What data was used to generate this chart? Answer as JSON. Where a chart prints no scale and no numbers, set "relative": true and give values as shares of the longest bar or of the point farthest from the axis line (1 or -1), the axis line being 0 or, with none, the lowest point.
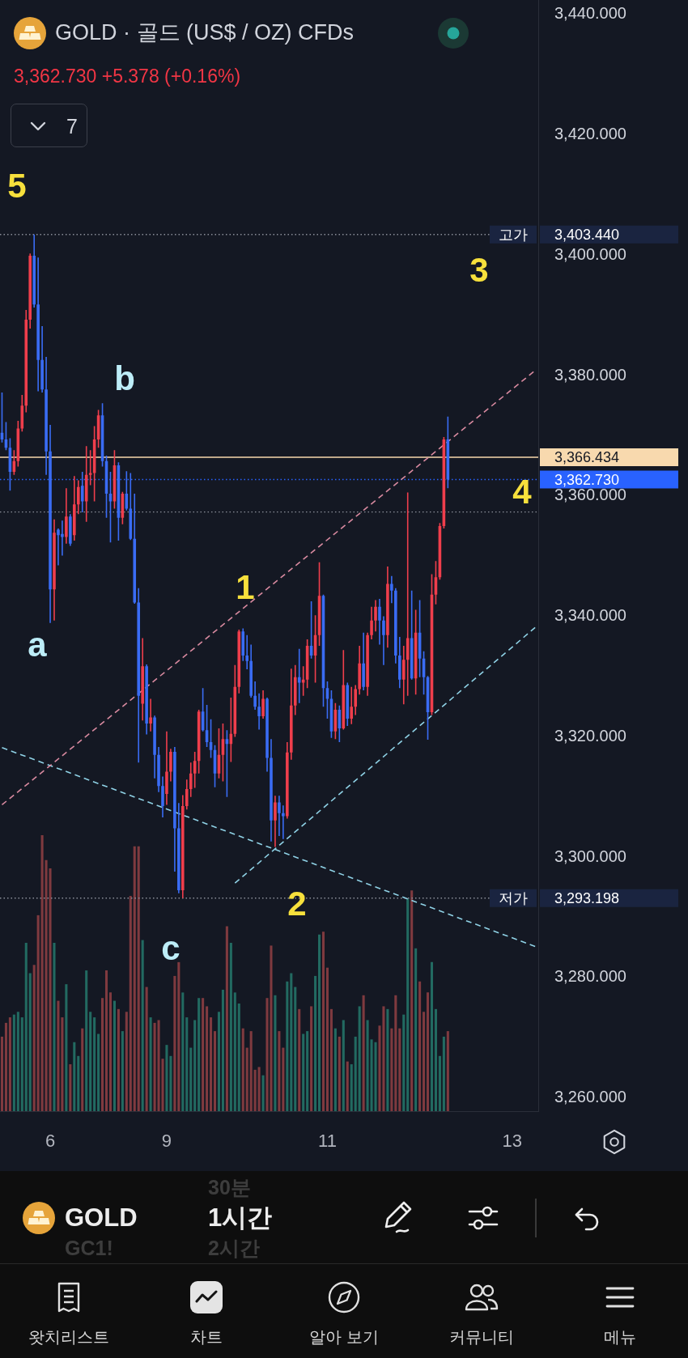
{
  "chart_data": [
    {
      "type": "candlestick",
      "title": "GOLD · 골드 (US$ / OZ) CFDs",
      "subtitle": "3,362.730 +5.378 (+0.16%)",
      "categories": [
        null,
        null,
        null,
        null,
        null,
        null,
        null,
        null,
        null,
        null,
        null,
        null,
        "6",
        null,
        null,
        null,
        null,
        null,
        null,
        null,
        null,
        null,
        null,
        null,
        null,
        null,
        null,
        null,
        null,
        null,
        null,
        null,
        null,
        null,
        null,
        null,
        null,
        null,
        null,
        null,
        null,
        "9",
        null,
        null,
        null,
        null,
        null,
        null,
        null,
        null,
        null,
        null,
        null,
        null,
        null,
        null,
        null,
        null,
        null,
        null,
        null,
        null,
        null,
        null,
        null,
        null,
        null,
        null,
        null,
        null,
        null,
        null,
        null,
        null,
        null,
        null,
        null,
        null,
        null,
        null,
        null,
        "11",
        null,
        null,
        null,
        null,
        null,
        null,
        null,
        null,
        null,
        null,
        null,
        null,
        null,
        null,
        null,
        null,
        null,
        null,
        null,
        null,
        null,
        null,
        null,
        null,
        null,
        null,
        null,
        null,
        null,
        null,
        null,
        null,
        null,
        null,
        null,
        null,
        null,
        null,
        null,
        null,
        null,
        null,
        null,
        null,
        null,
        "13",
        null,
        null,
        null,
        null,
        null,
        null
      ],
      "ohlc": [
        [
          3370.5,
          3377.2,
          3368.9,
          3369.4
        ],
        [
          3369.4,
          3372.3,
          3367.6,
          3368.0
        ],
        [
          3368.0,
          3369.6,
          3360.9,
          3364.0
        ],
        [
          3364.0,
          3367.6,
          3363.5,
          3365.8
        ],
        [
          3365.8,
          3372.5,
          3364.9,
          3371.2
        ],
        [
          3371.2,
          3376.8,
          3370.7,
          3375.0
        ],
        [
          3375.0,
          3390.9,
          3373.9,
          3389.3
        ],
        [
          3389.3,
          3400.3,
          3387.8,
          3399.9
        ],
        [
          3399.9,
          3403.44,
          3391.3,
          3391.8
        ],
        [
          3391.8,
          3399.6,
          3377.4,
          3382.6
        ],
        [
          3382.6,
          3388.2,
          3377.2,
          3377.7
        ],
        [
          3377.7,
          3383.1,
          3363.5,
          3367.4
        ],
        [
          3367.4,
          3371.8,
          3338.9,
          3344.5
        ],
        [
          3344.5,
          3356.1,
          3339.3,
          3353.9
        ],
        [
          3354.4,
          3354.6,
          3348.5,
          3353.5
        ],
        [
          3353.7,
          3355.9,
          3350.1,
          3353.2
        ],
        [
          3353.2,
          3361.3,
          3352.1,
          3356.6
        ],
        [
          3356.6,
          3357.0,
          3351.7,
          3352.1
        ],
        [
          3353.5,
          3363.3,
          3352.6,
          3358.6
        ],
        [
          3358.6,
          3362.6,
          3357.0,
          3361.5
        ],
        [
          3361.7,
          3364.0,
          3357.3,
          3359.1
        ],
        [
          3359.1,
          3368.3,
          3355.7,
          3363.5
        ],
        [
          3363.5,
          3367.6,
          3361.8,
          3363.8
        ],
        [
          3363.8,
          3371.6,
          3359.1,
          3369.4
        ],
        [
          3369.4,
          3374.3,
          3368.0,
          3373.4
        ],
        [
          3373.4,
          3375.4,
          3364.9,
          3365.8
        ],
        [
          3365.8,
          3366.7,
          3356.4,
          3360.4
        ],
        [
          3360.4,
          3364.0,
          3352.3,
          3359.1
        ],
        [
          3359.1,
          3367.6,
          3357.9,
          3365.1
        ],
        [
          3365.1,
          3365.6,
          3352.6,
          3356.4
        ],
        [
          3356.4,
          3360.7,
          3355.3,
          3360.4
        ],
        [
          3360.4,
          3364.1,
          3357.6,
          3357.9
        ],
        [
          3357.9,
          3363.8,
          3352.7,
          3352.9
        ],
        [
          3352.9,
          3360.4,
          3342.1,
          3342.3
        ],
        [
          3342.3,
          3344.7,
          3315.7,
          3326.8
        ],
        [
          3325.5,
          3336.4,
          3322.7,
          3331.7
        ],
        [
          3331.7,
          3332.0,
          3320.4,
          3322.2
        ],
        [
          3322.2,
          3326.3,
          3320.9,
          3323.2
        ],
        [
          3323.2,
          3323.5,
          3313.1,
          3317.0
        ],
        [
          3317.0,
          3318.3,
          3310.8,
          3311.8
        ],
        [
          3311.8,
          3313.4,
          3306.6,
          3308.5
        ],
        [
          3310.5,
          3320.9,
          3308.7,
          3314.2
        ],
        [
          3314.2,
          3318.0,
          3312.6,
          3317.5
        ],
        [
          3317.5,
          3318.3,
          3297.6,
          3304.8
        ],
        [
          3304.8,
          3309.0,
          3294.0,
          3294.5
        ],
        [
          3294.5,
          3310.3,
          3293.198,
          3308.5
        ],
        [
          3308.5,
          3312.9,
          3307.9,
          3311.3
        ],
        [
          3311.3,
          3315.7,
          3310.0,
          3313.9
        ],
        [
          3313.9,
          3317.5,
          3311.5,
          3316.0
        ],
        [
          3316.0,
          3324.5,
          3313.9,
          3324.2
        ],
        [
          3324.2,
          3328.1,
          3320.9,
          3321.1
        ],
        [
          3321.1,
          3325.3,
          3318.3,
          3319.1
        ],
        [
          3319.1,
          3322.9,
          3316.5,
          3317.8
        ],
        [
          3317.8,
          3318.6,
          3311.6,
          3313.9
        ],
        [
          3313.9,
          3321.4,
          3313.1,
          3317.0
        ],
        [
          3317.0,
          3322.2,
          3312.6,
          3319.6
        ],
        [
          3319.6,
          3321.1,
          3310.0,
          3318.8
        ],
        [
          3318.8,
          3326.5,
          3315.8,
          3320.5
        ],
        [
          3320.5,
          3331.9,
          3320.0,
          3328.3
        ],
        [
          3328.3,
          3337.8,
          3327.2,
          3337.5
        ],
        [
          3337.5,
          3338.0,
          3332.6,
          3333.5
        ],
        [
          3333.5,
          3336.9,
          3331.2,
          3332.6
        ],
        [
          3332.6,
          3335.3,
          3326.5,
          3326.8
        ],
        [
          3326.8,
          3329.2,
          3324.5,
          3325.0
        ],
        [
          3325.0,
          3327.2,
          3321.2,
          3323.4
        ],
        [
          3323.4,
          3327.7,
          3323.0,
          3326.3
        ],
        [
          3326.3,
          3326.5,
          3314.2,
          3316.5
        ],
        [
          3316.5,
          3319.6,
          3302.6,
          3306.1
        ],
        [
          3306.1,
          3310.2,
          3301.7,
          3309.1
        ],
        [
          3309.1,
          3310.2,
          3303.5,
          3307.3
        ],
        [
          3307.3,
          3308.6,
          3303.0,
          3306.8
        ],
        [
          3306.8,
          3319.1,
          3306.4,
          3317.4
        ],
        [
          3317.4,
          3331.3,
          3316.2,
          3325.2
        ],
        [
          3325.2,
          3331.9,
          3323.6,
          3329.9
        ],
        [
          3329.9,
          3334.6,
          3325.6,
          3329.0
        ],
        [
          3329.0,
          3331.7,
          3326.8,
          3329.5
        ],
        [
          3329.5,
          3336.2,
          3328.1,
          3335.1
        ],
        [
          3335.1,
          3342.5,
          3333.0,
          3333.5
        ],
        [
          3333.5,
          3340.2,
          3329.0,
          3336.9
        ],
        [
          3336.9,
          3349.0,
          3335.1,
          3343.4
        ],
        [
          3343.4,
          3343.6,
          3325.0,
          3328.1
        ],
        [
          3328.1,
          3329.2,
          3323.0,
          3326.3
        ],
        [
          3326.3,
          3327.7,
          3319.8,
          3320.9
        ],
        [
          3320.9,
          3325.6,
          3319.6,
          3324.5
        ],
        [
          3324.5,
          3325.2,
          3319.1,
          3321.4
        ],
        [
          3321.4,
          3334.4,
          3321.2,
          3328.6
        ],
        [
          3328.6,
          3329.0,
          3321.8,
          3323.0
        ],
        [
          3323.0,
          3328.3,
          3322.1,
          3325.0
        ],
        [
          3325.0,
          3328.6,
          3323.6,
          3327.9
        ],
        [
          3327.9,
          3335.1,
          3327.0,
          3332.2
        ],
        [
          3332.2,
          3337.3,
          3327.7,
          3328.3
        ],
        [
          3328.3,
          3337.3,
          3326.8,
          3336.9
        ],
        [
          3336.9,
          3341.6,
          3336.2,
          3339.3
        ],
        [
          3339.3,
          3342.7,
          3337.5,
          3341.6
        ],
        [
          3341.6,
          3342.9,
          3335.3,
          3339.3
        ],
        [
          3339.3,
          3340.0,
          3331.9,
          3336.9
        ],
        [
          3336.9,
          3348.3,
          3334.8,
          3345.4
        ],
        [
          3345.4,
          3346.7,
          3342.2,
          3344.3
        ],
        [
          3344.3,
          3344.7,
          3332.2,
          3333.5
        ],
        [
          3333.5,
          3336.6,
          3328.1,
          3329.5
        ],
        [
          3329.5,
          3335.1,
          3325.4,
          3332.8
        ],
        [
          3332.8,
          3360.6,
          3326.8,
          3336.4
        ],
        [
          3336.4,
          3344.3,
          3329.5,
          3329.7
        ],
        [
          3329.7,
          3341.1,
          3327.0,
          3337.3
        ],
        [
          3337.3,
          3342.7,
          3329.9,
          3333.0
        ],
        [
          3333.0,
          3334.2,
          3327.0,
          3329.9
        ],
        [
          3329.9,
          3330.1,
          3319.5,
          3324.1
        ],
        [
          3324.1,
          3347.0,
          3323.6,
          3343.6
        ],
        [
          3343.6,
          3349.2,
          3342.0,
          3346.5
        ],
        [
          3346.5,
          3355.5,
          3346.1,
          3355.0
        ],
        [
          3355.0,
          3369.8,
          3354.6,
          3369.4
        ],
        [
          3369.4,
          3373.2,
          3361.3,
          3362.73
        ],
        null,
        null,
        null,
        null,
        null,
        null,
        null,
        null,
        null,
        null,
        null,
        null,
        null,
        null,
        null,
        null,
        null,
        null,
        null,
        null,
        null,
        null
      ],
      "colors": [
        "#3a6cf4",
        "#3a6cf4",
        "#3a6cf4",
        "#ef3e4c",
        "#ef3e4c",
        "#ef3e4c",
        "#ef3e4c",
        "#ef3e4c",
        "#3a6cf4",
        "#3a6cf4",
        "#3a6cf4",
        "#3a6cf4",
        "#3a6cf4",
        "#ef3e4c",
        "#3a6cf4",
        "#3a6cf4",
        "#ef3e4c",
        "#3a6cf4",
        "#ef3e4c",
        "#ef3e4c",
        "#3a6cf4",
        "#ef3e4c",
        "#ef3e4c",
        "#ef3e4c",
        "#ef3e4c",
        "#3a6cf4",
        "#3a6cf4",
        "#3a6cf4",
        "#ef3e4c",
        "#3a6cf4",
        "#ef3e4c",
        "#3a6cf4",
        "#3a6cf4",
        "#3a6cf4",
        "#3a6cf4",
        "#ef3e4c",
        "#3a6cf4",
        "#ef3e4c",
        "#3a6cf4",
        "#3a6cf4",
        "#3a6cf4",
        "#ef3e4c",
        "#ef3e4c",
        "#3a6cf4",
        "#3a6cf4",
        "#ef3e4c",
        "#ef3e4c",
        "#ef3e4c",
        "#ef3e4c",
        "#ef3e4c",
        "#3a6cf4",
        "#3a6cf4",
        "#3a6cf4",
        "#3a6cf4",
        "#ef3e4c",
        "#ef3e4c",
        "#3a6cf4",
        "#ef3e4c",
        "#ef3e4c",
        "#ef3e4c",
        "#3a6cf4",
        "#3a6cf4",
        "#3a6cf4",
        "#3a6cf4",
        "#3a6cf4",
        "#ef3e4c",
        "#3a6cf4",
        "#3a6cf4",
        "#ef3e4c",
        "#3a6cf4",
        "#3a6cf4",
        "#ef3e4c",
        "#ef3e4c",
        "#ef3e4c",
        "#3a6cf4",
        "#ef3e4c",
        "#ef3e4c",
        "#3a6cf4",
        "#ef3e4c",
        "#ef3e4c",
        "#3a6cf4",
        "#3a6cf4",
        "#3a6cf4",
        "#ef3e4c",
        "#3a6cf4",
        "#ef3e4c",
        "#3a6cf4",
        "#ef3e4c",
        "#ef3e4c",
        "#ef3e4c",
        "#3a6cf4",
        "#ef3e4c",
        "#ef3e4c",
        "#ef3e4c",
        "#3a6cf4",
        "#3a6cf4",
        "#ef3e4c",
        "#3a6cf4",
        "#3a6cf4",
        "#3a6cf4",
        "#ef3e4c",
        "#ef3e4c",
        "#3a6cf4",
        "#ef3e4c",
        "#3a6cf4",
        "#3a6cf4",
        "#3a6cf4",
        "#ef3e4c",
        "#ef3e4c",
        "#ef3e4c",
        "#ef3e4c",
        "#3a6cf4",
        null,
        null,
        null,
        null,
        null,
        null,
        null,
        null,
        null,
        null,
        null,
        null,
        null,
        null,
        null,
        null,
        null,
        null,
        null,
        null,
        null,
        null
      ],
      "ylim": [
        3257.8,
        3442.4
      ],
      "yticks": [
        {
          "value": 3260,
          "label": "3,260.000"
        },
        {
          "value": 3280,
          "label": "3,280.000"
        },
        {
          "value": 3300,
          "label": "3,300.000"
        },
        {
          "value": 3320,
          "label": "3,320.000"
        },
        {
          "value": 3340,
          "label": "3,340.000"
        },
        {
          "value": 3360,
          "label": "3,360.000"
        },
        {
          "value": 3380,
          "label": "3,380.000"
        },
        {
          "value": 3400,
          "label": "3,400.000"
        },
        {
          "value": 3420,
          "label": "3,420.000"
        },
        {
          "value": 3440,
          "label": "3,440.000"
        }
      ],
      "series": [
        {
          "type": "line",
          "color": "#d98aa0",
          "line_style": "dashed",
          "values": [
            3308.7,
            null,
            null,
            null,
            null,
            null,
            null,
            null,
            null,
            null,
            null,
            null,
            null,
            null,
            null,
            null,
            null,
            null,
            null,
            null,
            null,
            null,
            null,
            null,
            null,
            null,
            null,
            null,
            null,
            null,
            null,
            null,
            null,
            null,
            null,
            null,
            null,
            null,
            null,
            null,
            null,
            null,
            null,
            null,
            null,
            null,
            null,
            null,
            null,
            null,
            null,
            null,
            null,
            null,
            null,
            null,
            null,
            null,
            null,
            null,
            null,
            null,
            null,
            null,
            null,
            null,
            null,
            null,
            null,
            null,
            null,
            null,
            null,
            null,
            null,
            null,
            null,
            null,
            null,
            null,
            null,
            null,
            null,
            null,
            null,
            null,
            null,
            null,
            null,
            null,
            null,
            null,
            null,
            null,
            null,
            null,
            null,
            null,
            null,
            null,
            null,
            null,
            null,
            null,
            null,
            null,
            null,
            null,
            null,
            null,
            null,
            null,
            null,
            null,
            null,
            null,
            null,
            null,
            null,
            null,
            null,
            null,
            null,
            null,
            null,
            null,
            null,
            null,
            null,
            null,
            null,
            null,
            null,
            3381.0
          ]
        },
        {
          "type": "line",
          "color": "#8fd2e6",
          "line_style": "dashed",
          "values": [
            null,
            null,
            null,
            null,
            null,
            null,
            null,
            null,
            null,
            null,
            null,
            null,
            null,
            null,
            null,
            null,
            null,
            null,
            null,
            null,
            null,
            null,
            null,
            null,
            null,
            null,
            null,
            null,
            null,
            null,
            null,
            null,
            null,
            null,
            null,
            null,
            null,
            null,
            null,
            null,
            null,
            null,
            null,
            null,
            null,
            null,
            null,
            null,
            null,
            null,
            null,
            null,
            null,
            null,
            null,
            null,
            null,
            null,
            3295.7,
            null,
            null,
            null,
            null,
            null,
            null,
            null,
            null,
            null,
            null,
            null,
            null,
            null,
            null,
            null,
            null,
            null,
            null,
            null,
            null,
            null,
            null,
            null,
            null,
            null,
            null,
            null,
            null,
            null,
            null,
            null,
            null,
            null,
            null,
            null,
            null,
            null,
            null,
            null,
            null,
            null,
            null,
            null,
            null,
            null,
            null,
            null,
            null,
            null,
            null,
            null,
            null,
            null,
            null,
            null,
            null,
            null,
            null,
            null,
            null,
            null,
            null,
            null,
            null,
            null,
            null,
            null,
            null,
            null,
            null,
            null,
            null,
            null,
            null,
            3338.3
          ]
        },
        {
          "type": "line",
          "color": "#8fd2e6",
          "line_style": "dashed",
          "values": [
            3318.2,
            null,
            null,
            null,
            null,
            null,
            null,
            null,
            null,
            null,
            null,
            null,
            null,
            null,
            null,
            null,
            null,
            null,
            null,
            null,
            null,
            null,
            null,
            null,
            null,
            null,
            null,
            null,
            null,
            null,
            null,
            null,
            null,
            null,
            null,
            null,
            null,
            null,
            null,
            null,
            null,
            null,
            null,
            null,
            null,
            null,
            null,
            null,
            null,
            null,
            null,
            null,
            null,
            null,
            null,
            null,
            null,
            null,
            null,
            null,
            null,
            null,
            null,
            null,
            null,
            null,
            null,
            null,
            null,
            null,
            null,
            null,
            null,
            null,
            null,
            null,
            null,
            null,
            null,
            null,
            null,
            null,
            null,
            null,
            null,
            null,
            null,
            null,
            null,
            null,
            null,
            null,
            null,
            null,
            null,
            null,
            null,
            null,
            null,
            null,
            null,
            null,
            null,
            null,
            null,
            null,
            null,
            null,
            null,
            null,
            null,
            null,
            null,
            null,
            null,
            null,
            null,
            null,
            null,
            null,
            null,
            null,
            null,
            null,
            null,
            null,
            null,
            null,
            null,
            null,
            null,
            null,
            null,
            3285.1
          ]
        }
      ],
      "ref_lines": [
        {
          "axis": "y",
          "value": 3403.44,
          "label": "고가 3,403.440",
          "color": "#8a8e99",
          "line_style": "dotted"
        },
        {
          "axis": "y",
          "value": 3366.434,
          "label": "3,366.434",
          "color": "#f8d9ae",
          "line_style": "solid"
        },
        {
          "axis": "y",
          "value": 3362.73,
          "label": "3,362.730",
          "color": "#2962ff",
          "line_style": "dotted"
        },
        {
          "axis": "y",
          "value": 3357.35,
          "color": "#8a8e99",
          "line_style": "dotted"
        },
        {
          "axis": "y",
          "value": 3293.198,
          "label": "저가 3,293.198",
          "color": "#8a8e99",
          "line_style": "dotted"
        }
      ],
      "annotations": [
        "5",
        "1",
        "2",
        "3",
        "4",
        "b",
        "a",
        "c",
        "7",
        "30분",
        "GOLD",
        "1시간",
        "GC1!",
        "2시간",
        "왓치리스트",
        "차트",
        "알아 보기",
        "커뮤니티",
        "메뉴"
      ]
    },
    {
      "type": "bar",
      "relative": true,
      "categories": [
        null,
        null,
        null,
        null,
        null,
        null,
        null,
        null,
        null,
        null,
        null,
        null,
        null,
        null,
        null,
        null,
        null,
        null,
        null,
        null,
        null,
        null,
        null,
        null,
        null,
        null,
        null,
        null,
        null,
        null,
        null,
        null,
        null,
        null,
        null,
        null,
        null,
        null,
        null,
        null,
        null,
        null,
        null,
        null,
        null,
        null,
        null,
        null,
        null,
        null,
        null,
        null,
        null,
        null,
        null,
        null,
        null,
        null,
        null,
        null,
        null,
        null,
        null,
        null,
        null,
        null,
        null,
        null,
        null,
        null,
        null,
        null,
        null,
        null,
        null,
        null,
        null,
        null,
        null,
        null,
        null,
        null,
        null,
        null,
        null,
        null,
        null,
        null,
        null,
        null,
        null,
        null,
        null,
        null,
        null,
        null,
        null,
        null,
        null,
        null,
        null,
        null,
        null,
        null,
        null,
        null,
        null,
        null,
        null,
        null,
        null,
        null,
        null,
        null,
        null,
        null,
        null,
        null,
        null,
        null,
        null,
        null,
        null,
        null,
        null,
        null,
        null,
        null,
        null,
        null,
        null,
        null,
        null,
        null
      ],
      "values": [
        0.27,
        0.32,
        0.34,
        0.35,
        0.36,
        0.34,
        0.61,
        0.5,
        0.53,
        0.71,
        1,
        0.91,
        0.88,
        0.61,
        0.4,
        0.34,
        0.46,
        0.17,
        0.25,
        0.2,
        0.3,
        0.51,
        0.36,
        0.34,
        0.28,
        0.41,
        0.51,
        0.43,
        0.4,
        0.37,
        0.29,
        0.36,
        0.78,
        0.96,
        0.96,
        0.62,
        0.45,
        0.34,
        0.32,
        0.33,
        0.19,
        0.24,
        0.2,
        0.49,
        0.54,
        0.43,
        0.34,
        0.23,
        0.33,
        0.41,
        0.41,
        0.38,
        0.34,
        0.29,
        0.36,
        0.44,
        0.67,
        0.61,
        0.43,
        0.39,
        0.3,
        0.23,
        0.29,
        0.15,
        0.16,
        0.13,
        0.41,
        0.6,
        0.42,
        0.29,
        0.23,
        0.47,
        0.5,
        0.45,
        0.37,
        0.28,
        0.29,
        0.38,
        0.49,
        0.64,
        0.65,
        0.52,
        0.37,
        0.3,
        0.27,
        0.33,
        0.18,
        0.17,
        0.27,
        0.38,
        0.42,
        0.33,
        0.26,
        0.25,
        0.31,
        0.38,
        0.37,
        0.3,
        0.42,
        0.3,
        0.35,
        0.77,
        0.8,
        0.59,
        0.47,
        0.36,
        0.43,
        0.54,
        0.37,
        0.2,
        0.27,
        0.29,
        null,
        null,
        null,
        null,
        null,
        null,
        null,
        null,
        null,
        null,
        null,
        null,
        null,
        null,
        null,
        null,
        null,
        null,
        null,
        null,
        null,
        null
      ],
      "colors": [
        "#7f3a3f",
        "#7f3a3f",
        "#7f3a3f",
        "#226a61",
        "#226a61",
        "#226a61",
        "#226a61",
        "#226a61",
        "#7f3a3f",
        "#7f3a3f",
        "#7f3a3f",
        "#7f3a3f",
        "#7f3a3f",
        "#226a61",
        "#7f3a3f",
        "#7f3a3f",
        "#226a61",
        "#7f3a3f",
        "#226a61",
        "#226a61",
        "#7f3a3f",
        "#226a61",
        "#226a61",
        "#226a61",
        "#226a61",
        "#7f3a3f",
        "#7f3a3f",
        "#7f3a3f",
        "#226a61",
        "#7f3a3f",
        "#226a61",
        "#7f3a3f",
        "#7f3a3f",
        "#7f3a3f",
        "#7f3a3f",
        "#226a61",
        "#7f3a3f",
        "#226a61",
        "#7f3a3f",
        "#7f3a3f",
        "#7f3a3f",
        "#226a61",
        "#226a61",
        "#7f3a3f",
        "#7f3a3f",
        "#226a61",
        "#226a61",
        "#226a61",
        "#226a61",
        "#226a61",
        "#7f3a3f",
        "#7f3a3f",
        "#7f3a3f",
        "#7f3a3f",
        "#226a61",
        "#226a61",
        "#7f3a3f",
        "#226a61",
        "#226a61",
        "#226a61",
        "#7f3a3f",
        "#7f3a3f",
        "#7f3a3f",
        "#7f3a3f",
        "#7f3a3f",
        "#226a61",
        "#7f3a3f",
        "#7f3a3f",
        "#226a61",
        "#7f3a3f",
        "#7f3a3f",
        "#226a61",
        "#226a61",
        "#226a61",
        "#7f3a3f",
        "#226a61",
        "#226a61",
        "#7f3a3f",
        "#226a61",
        "#226a61",
        "#7f3a3f",
        "#7f3a3f",
        "#7f3a3f",
        "#226a61",
        "#7f3a3f",
        "#226a61",
        "#7f3a3f",
        "#226a61",
        "#226a61",
        "#226a61",
        "#7f3a3f",
        "#226a61",
        "#226a61",
        "#226a61",
        "#7f3a3f",
        "#7f3a3f",
        "#226a61",
        "#7f3a3f",
        "#7f3a3f",
        "#7f3a3f",
        "#226a61",
        "#226a61",
        "#7f3a3f",
        "#226a61",
        "#7f3a3f",
        "#7f3a3f",
        "#7f3a3f",
        "#226a61",
        "#226a61",
        "#226a61",
        "#226a61",
        "#7f3a3f",
        null,
        null,
        null,
        null,
        null,
        null,
        null,
        null,
        null,
        null,
        null,
        null,
        null,
        null,
        null,
        null,
        null,
        null,
        null,
        null,
        null,
        null
      ]
    }
  ]
}
